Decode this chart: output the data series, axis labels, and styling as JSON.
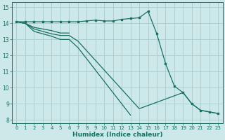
{
  "xlabel": "Humidex (Indice chaleur)",
  "background_color": "#cce8e8",
  "grid_color": "#aacccc",
  "line_color": "#1a7060",
  "xlim": [
    -0.5,
    23.5
  ],
  "ylim": [
    7.8,
    15.3
  ],
  "yticks": [
    8,
    9,
    10,
    11,
    12,
    13,
    14,
    15
  ],
  "xticks": [
    0,
    1,
    2,
    3,
    4,
    5,
    6,
    7,
    8,
    9,
    10,
    11,
    12,
    13,
    14,
    15,
    16,
    17,
    18,
    19,
    20,
    21,
    22,
    23
  ],
  "series": {
    "s1": [
      14.1,
      14.1,
      14.1,
      14.1,
      14.1,
      14.1,
      14.1,
      14.1,
      14.15,
      14.2,
      14.15,
      14.15,
      14.25,
      14.3,
      14.35,
      14.75,
      13.35,
      11.5,
      10.1,
      9.7,
      9.0,
      8.6,
      8.5,
      8.4
    ],
    "s2": [
      14.1,
      14.0,
      13.75,
      13.65,
      13.55,
      13.4,
      13.4,
      null,
      null,
      null,
      null,
      null,
      null,
      null,
      null,
      null,
      null,
      null,
      null,
      null,
      null,
      null,
      null,
      null
    ],
    "s3": [
      14.1,
      14.0,
      13.65,
      13.5,
      13.35,
      13.25,
      13.25,
      12.9,
      12.3,
      11.7,
      11.1,
      10.5,
      9.9,
      9.3,
      8.7,
      null,
      null,
      null,
      null,
      9.7,
      9.0,
      8.6,
      8.5,
      8.4
    ],
    "s4": [
      14.1,
      14.0,
      13.5,
      13.35,
      13.2,
      13.0,
      13.0,
      12.5,
      11.8,
      11.1,
      10.4,
      9.7,
      9.0,
      8.3,
      null,
      null,
      null,
      null,
      null,
      null,
      null,
      null,
      null,
      null
    ]
  },
  "marker_size": 2.5,
  "line_width": 0.9,
  "tick_fontsize": 5.5,
  "xlabel_fontsize": 6.5
}
